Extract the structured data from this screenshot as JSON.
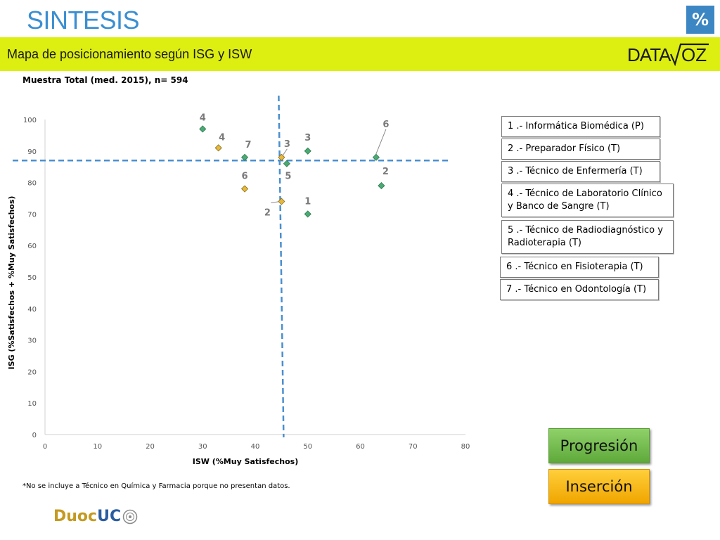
{
  "header": {
    "title": "SINTESIS",
    "percent_label": "%",
    "subtitle": "Mapa de posicionamiento según ISG y ISW",
    "brand_logo": "DATAVOZ"
  },
  "sample_note": "Muestra Total (med. 2015), n= 594",
  "chart_data": {
    "type": "scatter",
    "xlabel": "ISW (%Muy Satisfechos)",
    "ylabel": "ISG (%Satisfechos + %Muy Satisfechos)",
    "xlim": [
      0,
      80
    ],
    "ylim": [
      0,
      100
    ],
    "x_ticks": [
      "0",
      "10",
      "20",
      "30",
      "40",
      "50",
      "60",
      "70",
      "80"
    ],
    "y_ticks": [
      "0",
      "10",
      "20",
      "30",
      "40",
      "50",
      "60",
      "70",
      "80",
      "90",
      "100"
    ],
    "grid": false,
    "reference_lines": {
      "x": 45,
      "y": 87
    },
    "series": [
      {
        "color": "#4aaa73",
        "points": [
          {
            "label": "4",
            "x": 30,
            "y": 97
          },
          {
            "label": "7",
            "x": 38,
            "y": 88
          },
          {
            "label": "3",
            "x": 50,
            "y": 90
          },
          {
            "label": "5",
            "x": 46,
            "y": 86
          },
          {
            "label": "1",
            "x": 50,
            "y": 70
          },
          {
            "label": "6",
            "x": 63,
            "y": 88
          },
          {
            "label": "2",
            "x": 64,
            "y": 79
          }
        ]
      },
      {
        "color": "#e7b93a",
        "points": [
          {
            "label": "4",
            "x": 33,
            "y": 91
          },
          {
            "label": "3",
            "x": 45,
            "y": 88
          },
          {
            "label": "6",
            "x": 38,
            "y": 78
          },
          {
            "label": "2",
            "x": 45,
            "y": 74
          }
        ]
      }
    ]
  },
  "legend": [
    {
      "text": "1 .- Informática Biomédica (P)"
    },
    {
      "text": "2 .- Preparador Físico (T)"
    },
    {
      "text": "3 .- Técnico de Enfermería (T)"
    },
    {
      "line1": "4 .- Técnico de Laboratorio Clínico",
      "line2": "y Banco de Sangre (T)"
    },
    {
      "line1": "5 .- Técnico de Radiodiagnóstico y",
      "line2": "Radioterapia (T)"
    },
    {
      "text": "6 .- Técnico en Fisioterapia (T)"
    },
    {
      "text": "7 .- Técnico en Odontología (T)"
    }
  ],
  "buttons": {
    "progresion": "Progresión",
    "insercion": "Inserción"
  },
  "footnote": "*No se incluye a  Técnico en Química y Farmacia porque no presentan datos.",
  "footer_logo": {
    "duoc": "Duoc",
    "uc": "UC"
  }
}
